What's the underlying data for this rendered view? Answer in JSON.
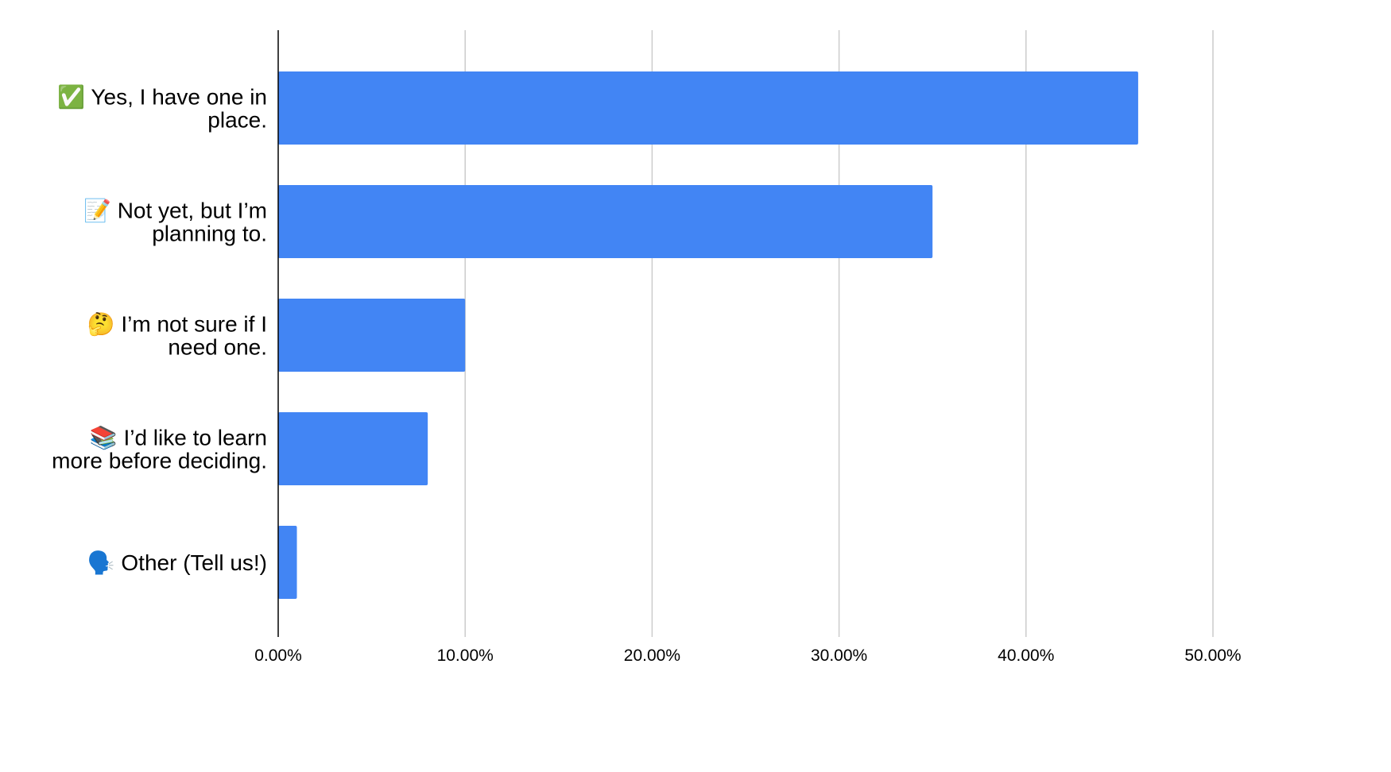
{
  "chart_data": {
    "type": "bar",
    "orientation": "horizontal",
    "categories": [
      [
        "✅ Yes, I have one in",
        "place."
      ],
      [
        "📝 Not yet, but I’m",
        "planning to."
      ],
      [
        "🤔 I’m not sure if I",
        "need one."
      ],
      [
        "📚 I’d like to learn",
        "more before deciding."
      ],
      [
        "🗣️ Other (Tell us!)"
      ]
    ],
    "values": [
      46.0,
      35.0,
      10.0,
      8.0,
      1.0
    ],
    "xlim": [
      0,
      50
    ],
    "xticks": [
      0,
      10,
      20,
      30,
      40,
      50
    ],
    "xtick_labels": [
      "0.00%",
      "10.00%",
      "20.00%",
      "30.00%",
      "40.00%",
      "50.00%"
    ],
    "grid": true,
    "legend": "none",
    "colors": {
      "bar": "#4285f4",
      "grid": "#cccccc",
      "axis": "#000000"
    }
  }
}
